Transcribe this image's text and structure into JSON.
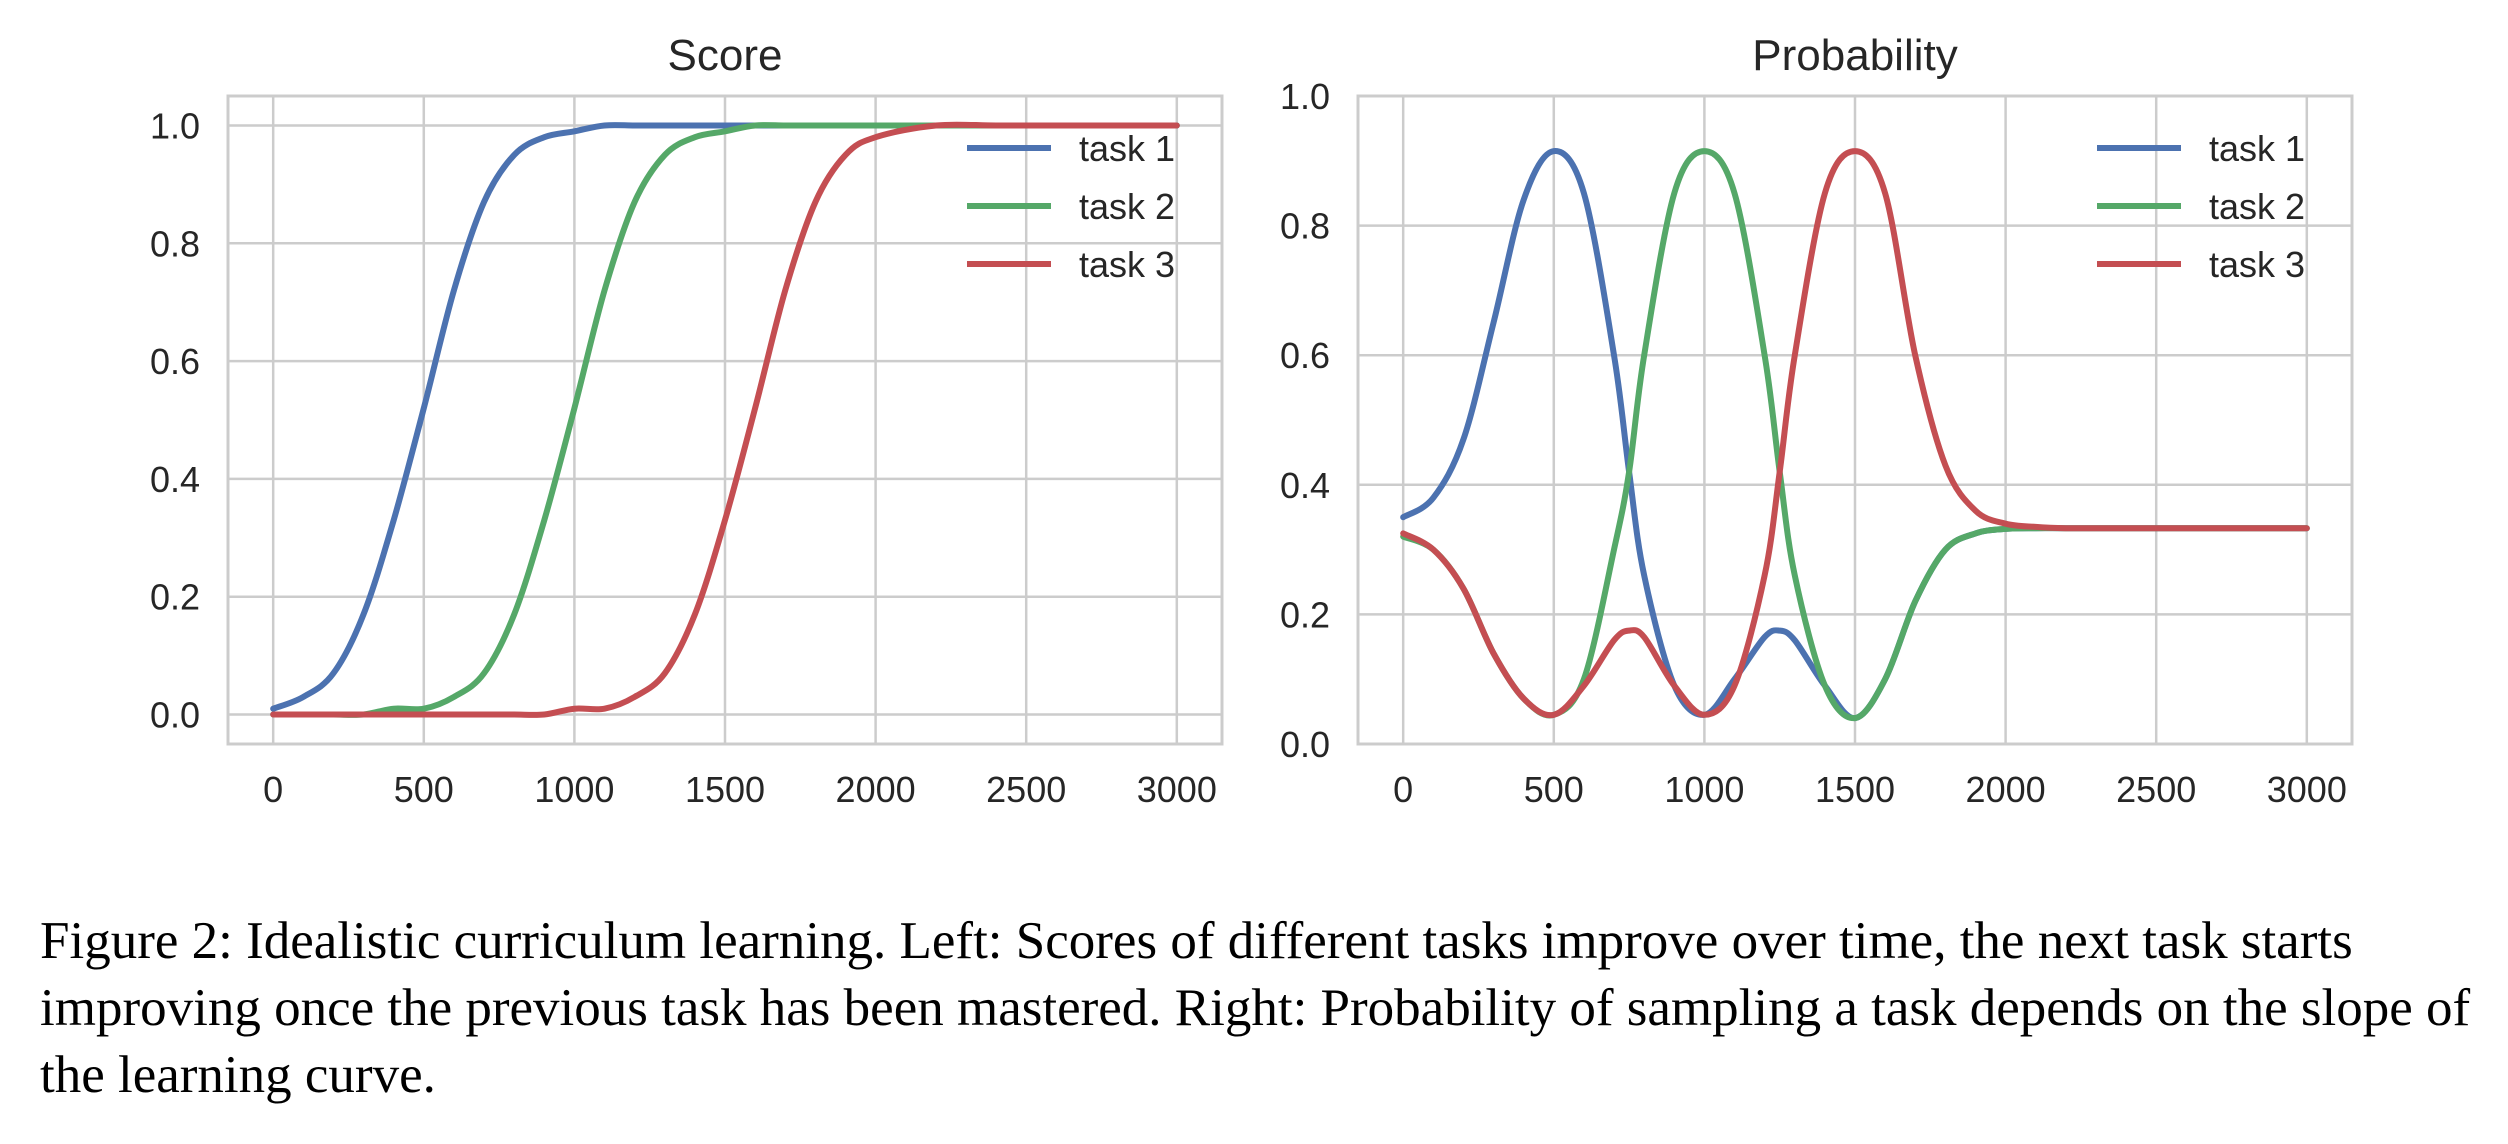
{
  "colors": {
    "task1": "#4c72b0",
    "task2": "#55a868",
    "task3": "#c44e52"
  },
  "chart_data": [
    {
      "type": "line",
      "title": "Score",
      "xlabel": "",
      "ylabel": "",
      "xlim": [
        -150,
        3150
      ],
      "ylim": [
        -0.05,
        1.05
      ],
      "xticks": [
        0,
        500,
        1000,
        1500,
        2000,
        2500,
        3000
      ],
      "yticks": [
        0.0,
        0.2,
        0.4,
        0.6,
        0.8,
        1.0
      ],
      "ytick_labels": [
        "0.0",
        "0.2",
        "0.4",
        "0.6",
        "0.8",
        "1.0"
      ],
      "grid": true,
      "legend": "top-right",
      "x": [
        0,
        100,
        200,
        300,
        400,
        500,
        600,
        700,
        800,
        900,
        1000,
        1100,
        1200,
        1300,
        1400,
        1500,
        1600,
        1700,
        1800,
        1900,
        2000,
        2200,
        2400,
        2600,
        2800,
        3000
      ],
      "series": [
        {
          "name": "task 1",
          "color_key": "task1",
          "values": [
            0.01,
            0.03,
            0.07,
            0.17,
            0.33,
            0.52,
            0.72,
            0.87,
            0.95,
            0.98,
            0.99,
            1.0,
            1.0,
            1.0,
            1.0,
            1.0,
            1.0,
            1.0,
            1.0,
            1.0,
            1.0,
            1.0,
            1.0,
            1.0,
            1.0,
            1.0
          ]
        },
        {
          "name": "task 2",
          "color_key": "task2",
          "values": [
            0.0,
            0.0,
            0.0,
            0.0,
            0.01,
            0.01,
            0.03,
            0.07,
            0.17,
            0.33,
            0.52,
            0.72,
            0.87,
            0.95,
            0.98,
            0.99,
            1.0,
            1.0,
            1.0,
            1.0,
            1.0,
            1.0,
            1.0,
            1.0,
            1.0,
            1.0
          ]
        },
        {
          "name": "task 3",
          "color_key": "task3",
          "values": [
            0.0,
            0.0,
            0.0,
            0.0,
            0.0,
            0.0,
            0.0,
            0.0,
            0.0,
            0.0,
            0.01,
            0.01,
            0.03,
            0.07,
            0.17,
            0.33,
            0.52,
            0.72,
            0.87,
            0.95,
            0.98,
            1.0,
            1.0,
            1.0,
            1.0,
            1.0
          ]
        }
      ]
    },
    {
      "type": "line",
      "title": "Probability",
      "xlabel": "",
      "ylabel": "",
      "xlim": [
        -150,
        3150
      ],
      "ylim": [
        0.0,
        1.0
      ],
      "xticks": [
        0,
        500,
        1000,
        1500,
        2000,
        2500,
        3000
      ],
      "yticks": [
        0.0,
        0.2,
        0.4,
        0.6,
        0.8,
        1.0
      ],
      "ytick_labels": [
        "0.0",
        "0.2",
        "0.4",
        "0.6",
        "0.8",
        "1.0"
      ],
      "grid": true,
      "legend": "top-right",
      "x": [
        0,
        100,
        200,
        300,
        400,
        500,
        600,
        700,
        750,
        800,
        900,
        1000,
        1100,
        1200,
        1250,
        1300,
        1400,
        1500,
        1600,
        1700,
        1800,
        1900,
        2000,
        2100,
        2200,
        2400,
        2600,
        2800,
        3000
      ],
      "series": [
        {
          "name": "task 1",
          "color_key": "task1",
          "values": [
            0.35,
            0.38,
            0.47,
            0.65,
            0.84,
            0.915,
            0.85,
            0.6,
            0.42,
            0.26,
            0.09,
            0.045,
            0.1,
            0.165,
            0.175,
            0.16,
            0.09,
            0.04,
            0.1,
            0.22,
            0.3,
            0.325,
            0.332,
            0.333,
            0.333,
            0.333,
            0.333,
            0.333,
            0.333
          ]
        },
        {
          "name": "task 2",
          "color_key": "task2",
          "values": [
            0.32,
            0.3,
            0.24,
            0.14,
            0.07,
            0.045,
            0.1,
            0.3,
            0.42,
            0.6,
            0.85,
            0.915,
            0.85,
            0.6,
            0.42,
            0.26,
            0.09,
            0.04,
            0.1,
            0.22,
            0.3,
            0.325,
            0.332,
            0.333,
            0.333,
            0.333,
            0.333,
            0.333,
            0.333
          ]
        },
        {
          "name": "task 3",
          "color_key": "task3",
          "values": [
            0.325,
            0.3,
            0.24,
            0.14,
            0.07,
            0.045,
            0.09,
            0.16,
            0.175,
            0.165,
            0.09,
            0.045,
            0.09,
            0.26,
            0.42,
            0.6,
            0.85,
            0.915,
            0.85,
            0.6,
            0.43,
            0.36,
            0.34,
            0.335,
            0.333,
            0.333,
            0.333,
            0.333,
            0.333
          ]
        }
      ]
    }
  ],
  "caption": "Figure 2: Idealistic curriculum learning. Left: Scores of different tasks improve over time, the next task starts improving once the previous task has been mastered. Right: Probability of sampling a task depends on the slope of the learning curve."
}
